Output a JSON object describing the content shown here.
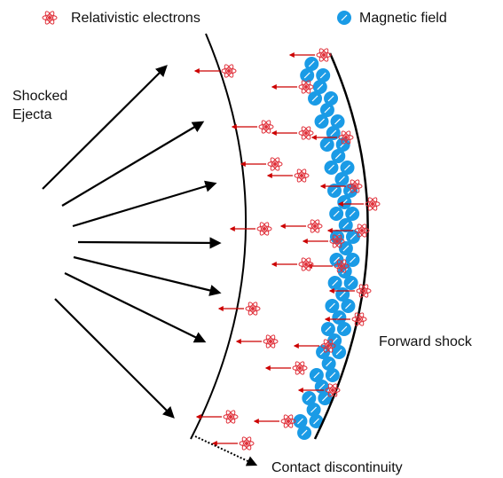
{
  "legend": {
    "electrons": "Relativistic electrons",
    "field": "Magnetic field"
  },
  "labels": {
    "ejecta": [
      "Shocked",
      "Ejecta"
    ],
    "forward_shock": "Forward shock",
    "contact": "Contact discontinuity"
  }
}
